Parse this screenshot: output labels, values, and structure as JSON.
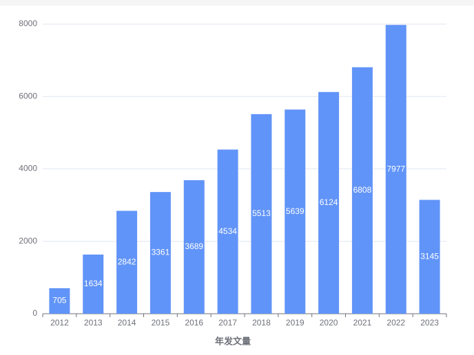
{
  "chart_data": {
    "type": "bar",
    "x_label": "年发文量",
    "categories": [
      "2012",
      "2013",
      "2014",
      "2015",
      "2016",
      "2017",
      "2018",
      "2019",
      "2020",
      "2021",
      "2022",
      "2023"
    ],
    "values": [
      705,
      1634,
      2842,
      3361,
      3689,
      4534,
      5513,
      5639,
      6124,
      6808,
      7977,
      3145
    ],
    "color": "#6194f8",
    "ylim": [
      0,
      8000
    ],
    "yticks": [
      0,
      2000,
      4000,
      6000,
      8000
    ],
    "grid": true
  }
}
